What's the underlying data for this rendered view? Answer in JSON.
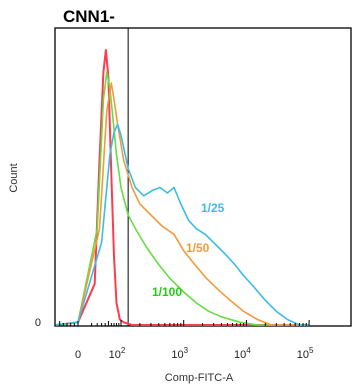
{
  "chart_data": {
    "type": "line",
    "title": "CNN1-",
    "xlabel": "Comp-FITC-A",
    "ylabel": "Count",
    "x_scale": "biexponential",
    "y_tick_labels": [
      "0"
    ],
    "x_tick_labels": [
      {
        "value": 0,
        "base": "0",
        "exp": ""
      },
      {
        "value": 100,
        "base": "10",
        "exp": "2"
      },
      {
        "value": 1000,
        "base": "10",
        "exp": "3"
      },
      {
        "value": 10000,
        "base": "10",
        "exp": "4"
      },
      {
        "value": 100000,
        "base": "10",
        "exp": "5"
      }
    ],
    "gate_x": 130,
    "series": [
      {
        "name": "",
        "color": "#ff3b4e",
        "points": [
          [
            -60,
            0
          ],
          [
            0,
            0.01
          ],
          [
            15,
            0.15
          ],
          [
            25,
            0.6
          ],
          [
            35,
            0.92
          ],
          [
            42,
            1.0
          ],
          [
            50,
            0.9
          ],
          [
            60,
            0.55
          ],
          [
            70,
            0.25
          ],
          [
            80,
            0.08
          ],
          [
            95,
            0.02
          ],
          [
            110,
            0.01
          ],
          [
            150,
            0
          ],
          [
            100000,
            0
          ]
        ]
      },
      {
        "name": "",
        "color": "#66dd44",
        "points": [
          [
            -60,
            0
          ],
          [
            0,
            0.01
          ],
          [
            20,
            0.35
          ],
          [
            35,
            0.82
          ],
          [
            45,
            0.92
          ],
          [
            55,
            0.86
          ],
          [
            65,
            0.76
          ],
          [
            80,
            0.62
          ],
          [
            100,
            0.5
          ],
          [
            130,
            0.4
          ],
          [
            180,
            0.34
          ],
          [
            260,
            0.28
          ],
          [
            400,
            0.22
          ],
          [
            600,
            0.17
          ],
          [
            1000,
            0.12
          ],
          [
            1600,
            0.08
          ],
          [
            2500,
            0.05
          ],
          [
            4000,
            0.03
          ],
          [
            8000,
            0.01
          ],
          [
            15000,
            0
          ],
          [
            100000,
            0
          ]
        ]
      },
      {
        "name": "",
        "color": "#f39a3c",
        "points": [
          [
            -60,
            0
          ],
          [
            0,
            0.01
          ],
          [
            25,
            0.35
          ],
          [
            45,
            0.78
          ],
          [
            60,
            0.88
          ],
          [
            70,
            0.82
          ],
          [
            85,
            0.73
          ],
          [
            110,
            0.6
          ],
          [
            150,
            0.5
          ],
          [
            200,
            0.44
          ],
          [
            300,
            0.4
          ],
          [
            450,
            0.36
          ],
          [
            700,
            0.33
          ],
          [
            1000,
            0.27
          ],
          [
            1500,
            0.22
          ],
          [
            2300,
            0.17
          ],
          [
            3500,
            0.13
          ],
          [
            5500,
            0.09
          ],
          [
            9000,
            0.05
          ],
          [
            15000,
            0.02
          ],
          [
            25000,
            0
          ],
          [
            100000,
            0
          ]
        ]
      },
      {
        "name": "",
        "color": "#3bbde6",
        "points": [
          [
            -60,
            0
          ],
          [
            0,
            0.01
          ],
          [
            30,
            0.3
          ],
          [
            55,
            0.62
          ],
          [
            70,
            0.7
          ],
          [
            85,
            0.73
          ],
          [
            100,
            0.69
          ],
          [
            130,
            0.57
          ],
          [
            170,
            0.5
          ],
          [
            230,
            0.47
          ],
          [
            320,
            0.49
          ],
          [
            420,
            0.5
          ],
          [
            550,
            0.48
          ],
          [
            700,
            0.5
          ],
          [
            900,
            0.44
          ],
          [
            1200,
            0.38
          ],
          [
            1600,
            0.35
          ],
          [
            2200,
            0.33
          ],
          [
            3000,
            0.3
          ],
          [
            4500,
            0.26
          ],
          [
            6500,
            0.22
          ],
          [
            9000,
            0.18
          ],
          [
            13000,
            0.14
          ],
          [
            20000,
            0.09
          ],
          [
            30000,
            0.05
          ],
          [
            45000,
            0.02
          ],
          [
            70000,
            0
          ],
          [
            100000,
            0
          ]
        ]
      }
    ],
    "series_labels": [
      {
        "text": "1/25",
        "color": "#3bbde6"
      },
      {
        "text": "1/50",
        "color": "#f39a3c"
      },
      {
        "text": "1/100",
        "color": "#22cc11"
      }
    ]
  }
}
